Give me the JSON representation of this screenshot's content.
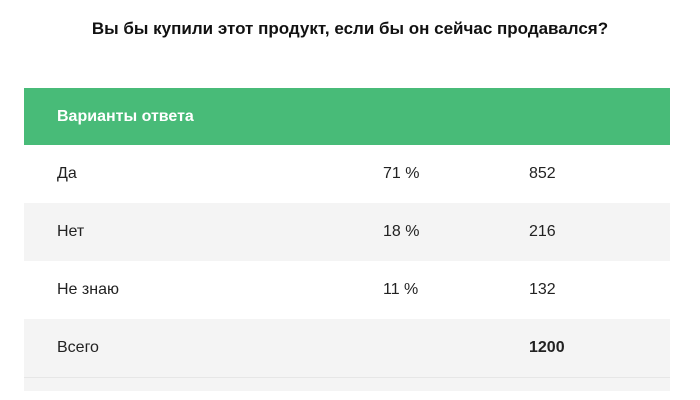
{
  "question": "Вы бы купили этот продукт, если бы он сейчас продавался?",
  "table": {
    "header_label": "Варианты ответа",
    "rows": [
      {
        "label": "Да",
        "percent": "71 %",
        "count": "852"
      },
      {
        "label": "Нет",
        "percent": "18 %",
        "count": "216"
      },
      {
        "label": "Не знаю",
        "percent": "11 %",
        "count": "132"
      }
    ],
    "total": {
      "label": "Всего",
      "count": "1200"
    }
  },
  "colors": {
    "header_bg": "#48bb78",
    "row_alt_bg": "#f4f4f4"
  }
}
